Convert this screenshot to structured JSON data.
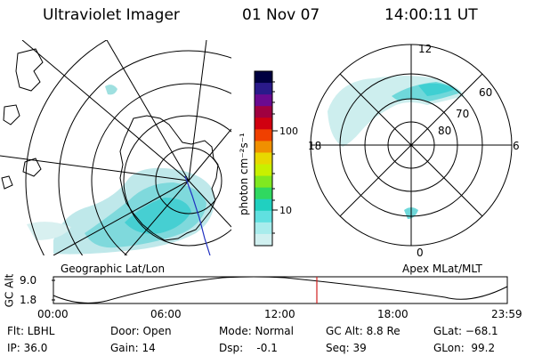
{
  "header": {
    "title": "Ultraviolet Imager",
    "date": "01 Nov 07",
    "time": "14:00:11 UT"
  },
  "left_panel": {
    "label": "Geographic Lat/Lon"
  },
  "right_panel": {
    "label": "Apex MLat/MLT",
    "mlt_labels": [
      "12",
      "18",
      "6",
      "0"
    ],
    "lat_labels": [
      "60",
      "70",
      "80"
    ]
  },
  "colorbar": {
    "unit": "photon cm⁻²s⁻¹",
    "ticks": [
      "100",
      "10"
    ],
    "colors": [
      "#000040",
      "#2a1a8a",
      "#6a0a90",
      "#a00040",
      "#d00010",
      "#f04000",
      "#f09000",
      "#e8d800",
      "#c8f000",
      "#80e820",
      "#30d860",
      "#20d0c0",
      "#60e0e0",
      "#a8ecec",
      "#d0f0f0"
    ]
  },
  "timeline": {
    "axis_label": "GC Alt",
    "y_top": "9.0",
    "y_bottom": "1.8",
    "ticks": [
      "00:00",
      "06:00",
      "12:00",
      "18:00",
      "23:59"
    ],
    "current_marker_color": "#d02020"
  },
  "status": {
    "flt_label": "Flt: LBHL",
    "ip_label": "IP: 36.0",
    "door_label": "Door: Open",
    "gain_label": "Gain: 14",
    "mode_label": "Mode: Normal",
    "dsp_label": "Dsp:    -0.1",
    "gcalt_label": "GC Alt: 8.8 Re",
    "seq_label": "Seq: 39",
    "glat_label": "GLat: −68.1",
    "glon_label": "GLon:  99.2"
  }
}
